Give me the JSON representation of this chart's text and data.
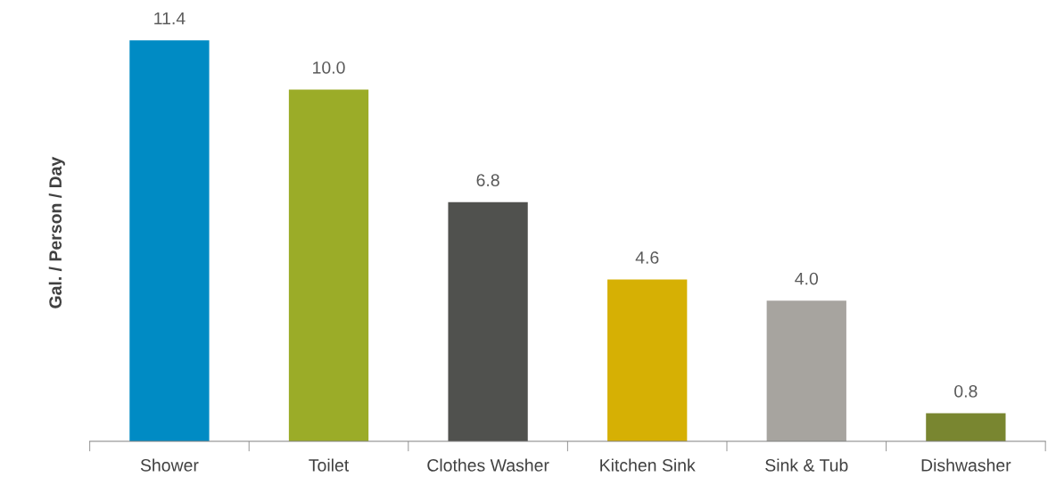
{
  "chart_data": {
    "type": "bar",
    "ylabel": "Gal. / Person / Day",
    "categories": [
      "Shower",
      "Toilet",
      "Clothes Washer",
      "Kitchen Sink",
      "Sink & Tub",
      "Dishwasher"
    ],
    "values": [
      11.4,
      10.0,
      6.8,
      4.6,
      4.0,
      0.8
    ],
    "value_labels": [
      "11.4",
      "10.0",
      "6.8",
      "4.6",
      "4.0",
      "0.8"
    ],
    "colors": [
      "#008bc4",
      "#9bac28",
      "#50514e",
      "#d6b004",
      "#a7a49f",
      "#798630"
    ],
    "grid": false
  }
}
